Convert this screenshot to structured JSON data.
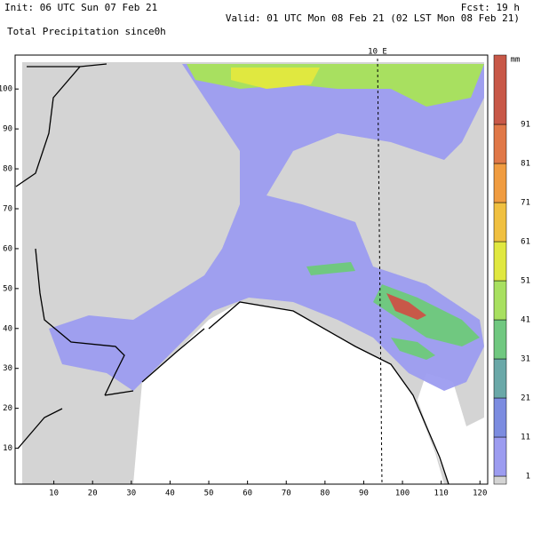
{
  "header": {
    "init": "Init: 06 UTC Sun 07 Feb 21",
    "fcst": "Fcst:   19 h",
    "valid": "Valid: 01 UTC Mon 08 Feb 21 (02 LST Mon 08 Feb 21)",
    "field": "Total Precipitation since0h"
  },
  "map": {
    "meridian_label": "10 E",
    "xlim": [
      0,
      122
    ],
    "ylim": [
      1,
      108.5
    ],
    "xticks": [
      10,
      20,
      30,
      40,
      50,
      60,
      70,
      80,
      90,
      100,
      110,
      120
    ],
    "yticks": [
      10,
      20,
      30,
      40,
      50,
      60,
      70,
      80,
      90,
      100
    ]
  },
  "colorbar": {
    "unit": "mm",
    "levels": [
      1,
      11,
      21,
      31,
      41,
      51,
      61,
      71,
      81,
      91
    ],
    "colors": [
      "#d4d4d4",
      "#9c9cf0",
      "#7c8ce0",
      "#6aa8a8",
      "#70c880",
      "#a8e060",
      "#e0e840",
      "#f0c040",
      "#f09c40",
      "#e07848",
      "#c85848"
    ]
  }
}
